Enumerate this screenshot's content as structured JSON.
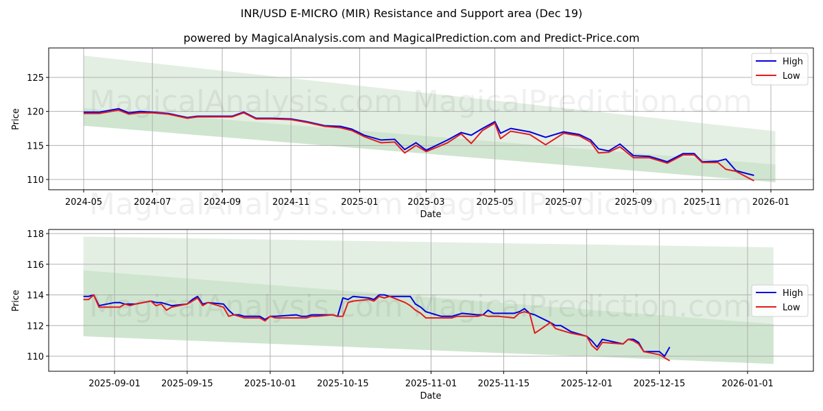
{
  "header": {
    "title": "INR/USD E-MICRO (MIR) Resistance and Support area (Dec 19)",
    "subtitle": "powered by MagicalAnalysis.com and MagicalPrediction.com and Predict-Price.com"
  },
  "watermarks": [
    "MagicalAnalysis.com",
    "MagicalPrediction.com"
  ],
  "colors": {
    "high": "#0000dd",
    "low": "#e31a1c",
    "band_outer": "#e3efe3",
    "band_inner": "#cfe5cf",
    "grid": "#b0b0b0"
  },
  "chart_data": [
    {
      "type": "line",
      "title": "Full history",
      "xlabel": "Date",
      "ylabel": "Price",
      "ylim": [
        108.5,
        129.3
      ],
      "yticks": [
        110,
        115,
        120,
        125
      ],
      "xtick_labels": [
        "2024-05",
        "2024-07",
        "2024-09",
        "2024-11",
        "2025-01",
        "2025-03",
        "2025-05",
        "2025-07",
        "2025-09",
        "2025-11",
        "2026-01"
      ],
      "grid": true,
      "legend": {
        "position": "upper right",
        "entries": [
          "High",
          "Low"
        ]
      },
      "bands": {
        "outer": {
          "x": [
            "2024-05-01",
            "2026-01-05"
          ],
          "upper": [
            128.2,
            117.1
          ],
          "lower": [
            117.9,
            109.6
          ]
        },
        "inner": {
          "x": [
            "2024-05-01",
            "2026-01-05"
          ],
          "upper": [
            120.5,
            112.2
          ],
          "lower": [
            117.9,
            109.6
          ]
        }
      },
      "x": [
        "2024-05-01",
        "2024-05-15",
        "2024-06-01",
        "2024-06-10",
        "2024-06-20",
        "2024-07-01",
        "2024-07-15",
        "2024-08-01",
        "2024-08-10",
        "2024-08-25",
        "2024-09-10",
        "2024-09-20",
        "2024-10-01",
        "2024-10-15",
        "2024-11-01",
        "2024-11-15",
        "2024-12-01",
        "2024-12-15",
        "2024-12-25",
        "2025-01-05",
        "2025-01-20",
        "2025-02-01",
        "2025-02-10",
        "2025-02-20",
        "2025-03-01",
        "2025-03-10",
        "2025-03-20",
        "2025-04-01",
        "2025-04-10",
        "2025-04-20",
        "2025-05-01",
        "2025-05-06",
        "2025-05-15",
        "2025-06-01",
        "2025-06-15",
        "2025-07-01",
        "2025-07-15",
        "2025-07-25",
        "2025-08-01",
        "2025-08-10",
        "2025-08-20",
        "2025-09-01",
        "2025-09-15",
        "2025-10-01",
        "2025-10-15",
        "2025-10-25",
        "2025-11-01",
        "2025-11-15",
        "2025-11-22",
        "2025-12-01",
        "2025-12-10",
        "2025-12-17"
      ],
      "series": [
        {
          "name": "High",
          "values": [
            119.9,
            119.9,
            120.4,
            119.8,
            120.0,
            119.9,
            119.7,
            119.1,
            119.3,
            119.3,
            119.3,
            119.9,
            119.0,
            119.0,
            118.9,
            118.5,
            117.9,
            117.8,
            117.4,
            116.5,
            115.8,
            115.9,
            114.4,
            115.4,
            114.3,
            115.0,
            115.8,
            116.9,
            116.5,
            117.5,
            118.5,
            116.8,
            117.5,
            117.0,
            116.2,
            117.0,
            116.6,
            115.8,
            114.5,
            114.2,
            115.2,
            113.5,
            113.4,
            112.6,
            113.8,
            113.8,
            112.6,
            112.7,
            113.0,
            111.3,
            110.9,
            110.6
          ]
        },
        {
          "name": "Low",
          "values": [
            119.7,
            119.7,
            120.2,
            119.6,
            119.8,
            119.8,
            119.6,
            119.0,
            119.2,
            119.2,
            119.2,
            119.8,
            118.9,
            118.9,
            118.8,
            118.4,
            117.8,
            117.6,
            117.2,
            116.3,
            115.4,
            115.5,
            113.9,
            115.0,
            114.1,
            114.7,
            115.4,
            116.7,
            115.3,
            117.2,
            118.3,
            116.0,
            117.1,
            116.6,
            115.1,
            116.8,
            116.4,
            115.5,
            113.9,
            114.0,
            114.8,
            113.2,
            113.2,
            112.4,
            113.6,
            113.6,
            112.5,
            112.5,
            111.5,
            111.2,
            110.4,
            109.8
          ]
        }
      ]
    },
    {
      "type": "line",
      "title": "Zoomed recent period",
      "xlabel": "Date",
      "ylabel": "Price",
      "ylim": [
        109.0,
        118.3
      ],
      "yticks": [
        110,
        112,
        114,
        116,
        118
      ],
      "xtick_labels": [
        "2025-09-01",
        "2025-09-15",
        "2025-10-01",
        "2025-10-15",
        "2025-11-01",
        "2025-11-15",
        "2025-12-01",
        "2025-12-15",
        "2026-01-01"
      ],
      "grid": true,
      "legend": {
        "position": "center right",
        "entries": [
          "High",
          "Low"
        ]
      },
      "bands": {
        "outer": {
          "x": [
            "2025-08-26",
            "2026-01-06"
          ],
          "upper": [
            117.8,
            117.1
          ],
          "lower": [
            111.3,
            109.5
          ]
        },
        "inner": {
          "x": [
            "2025-08-26",
            "2026-01-06"
          ],
          "upper": [
            115.6,
            112.1
          ],
          "lower": [
            111.3,
            109.5
          ]
        }
      },
      "x": [
        "2025-08-26",
        "2025-08-27",
        "2025-08-28",
        "2025-08-29",
        "2025-09-01",
        "2025-09-02",
        "2025-09-03",
        "2025-09-04",
        "2025-09-05",
        "2025-09-08",
        "2025-09-09",
        "2025-09-10",
        "2025-09-11",
        "2025-09-12",
        "2025-09-15",
        "2025-09-16",
        "2025-09-17",
        "2025-09-18",
        "2025-09-19",
        "2025-09-22",
        "2025-09-23",
        "2025-09-24",
        "2025-09-25",
        "2025-09-26",
        "2025-09-29",
        "2025-09-30",
        "2025-10-01",
        "2025-10-02",
        "2025-10-06",
        "2025-10-07",
        "2025-10-08",
        "2025-10-09",
        "2025-10-10",
        "2025-10-13",
        "2025-10-14",
        "2025-10-15",
        "2025-10-16",
        "2025-10-17",
        "2025-10-20",
        "2025-10-21",
        "2025-10-22",
        "2025-10-23",
        "2025-10-24",
        "2025-10-27",
        "2025-10-28",
        "2025-10-29",
        "2025-10-30",
        "2025-10-31",
        "2025-11-03",
        "2025-11-04",
        "2025-11-05",
        "2025-11-06",
        "2025-11-07",
        "2025-11-10",
        "2025-11-11",
        "2025-11-12",
        "2025-11-13",
        "2025-11-14",
        "2025-11-17",
        "2025-11-18",
        "2025-11-19",
        "2025-11-20",
        "2025-11-21",
        "2025-11-24",
        "2025-11-25",
        "2025-11-26",
        "2025-11-28",
        "2025-12-01",
        "2025-12-02",
        "2025-12-03",
        "2025-12-04",
        "2025-12-08",
        "2025-12-09",
        "2025-12-10",
        "2025-12-11",
        "2025-12-12",
        "2025-12-15",
        "2025-12-16",
        "2025-12-17"
      ],
      "series": [
        {
          "name": "High",
          "values": [
            113.9,
            113.9,
            114.0,
            113.3,
            113.5,
            113.5,
            113.4,
            113.4,
            113.4,
            113.6,
            113.5,
            113.5,
            113.4,
            113.3,
            113.4,
            113.7,
            113.9,
            113.4,
            113.5,
            113.4,
            113.0,
            112.7,
            112.7,
            112.6,
            112.6,
            112.4,
            112.6,
            112.6,
            112.7,
            112.6,
            112.6,
            112.7,
            112.7,
            112.7,
            112.6,
            113.8,
            113.7,
            113.9,
            113.8,
            113.7,
            114.0,
            114.0,
            113.9,
            113.9,
            113.9,
            113.4,
            113.2,
            112.9,
            112.6,
            112.6,
            112.6,
            112.7,
            112.8,
            112.7,
            112.7,
            113.0,
            112.8,
            112.8,
            112.8,
            112.9,
            113.1,
            112.8,
            112.7,
            112.2,
            112.0,
            112.0,
            111.6,
            111.3,
            111.0,
            110.6,
            111.1,
            110.8,
            111.1,
            111.1,
            110.9,
            110.3,
            110.3,
            110.0,
            110.6
          ]
        },
        {
          "name": "Low",
          "values": [
            113.7,
            113.7,
            114.0,
            113.2,
            113.2,
            113.2,
            113.4,
            113.3,
            113.4,
            113.6,
            113.3,
            113.4,
            113.0,
            113.2,
            113.4,
            113.6,
            113.8,
            113.3,
            113.5,
            113.2,
            112.6,
            112.7,
            112.6,
            112.5,
            112.5,
            112.3,
            112.6,
            112.5,
            112.5,
            112.5,
            112.5,
            112.6,
            112.6,
            112.7,
            112.6,
            112.6,
            113.5,
            113.6,
            113.7,
            113.6,
            113.9,
            113.8,
            113.9,
            113.5,
            113.3,
            113.0,
            112.8,
            112.5,
            112.5,
            112.5,
            112.5,
            112.6,
            112.6,
            112.6,
            112.7,
            112.6,
            112.6,
            112.6,
            112.5,
            112.8,
            112.9,
            112.8,
            111.5,
            112.2,
            111.8,
            111.7,
            111.5,
            111.3,
            110.7,
            110.4,
            110.9,
            110.8,
            111.1,
            111.0,
            110.8,
            110.3,
            110.1,
            109.9,
            109.7
          ]
        }
      ]
    }
  ]
}
